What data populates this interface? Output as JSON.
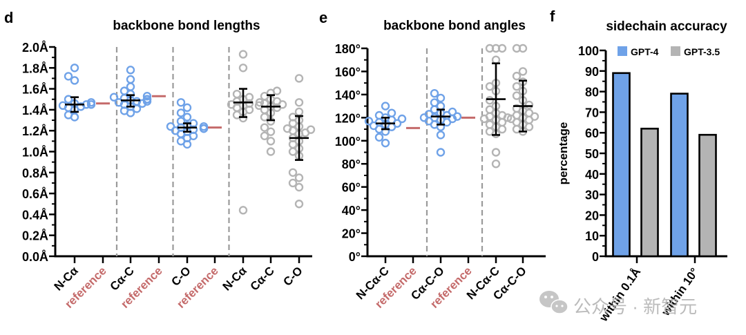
{
  "colors": {
    "gpt4": "#6fa2e8",
    "gpt35": "#b4b4b4",
    "reference": "#c46a6a",
    "axis": "#000000",
    "divider": "#9a9a9a",
    "watermark": "#b0b0b0"
  },
  "watermark": {
    "text": "公众号 · 新智元",
    "icon": "wechat-icon"
  },
  "chart_data": [
    {
      "panel": "d",
      "type": "scatter",
      "title": "backbone bond lengths",
      "ylabel": "",
      "ylim": [
        0.0,
        2.0
      ],
      "yticks": [
        "0.0Å",
        "0.2Å",
        "0.4Å",
        "0.6Å",
        "0.8Å",
        "1.0Å",
        "1.2Å",
        "1.4Å",
        "1.6Å",
        "1.8Å",
        "2.0Å"
      ],
      "ytick_values": [
        0.0,
        0.2,
        0.4,
        0.6,
        0.8,
        1.0,
        1.2,
        1.4,
        1.6,
        1.8,
        2.0
      ],
      "categories": [
        "N-Cα",
        "reference",
        "Cα-C",
        "reference",
        "C-O",
        "reference",
        "N-Cα",
        "Cα-C",
        "C-O"
      ],
      "category_roles": [
        "gpt4",
        "reference",
        "gpt4",
        "reference",
        "gpt4",
        "reference",
        "gpt35",
        "gpt35",
        "gpt35"
      ],
      "dividers_after": [
        1,
        3,
        5
      ],
      "groups": [
        {
          "label": "N-Cα",
          "model": "GPT-4",
          "mean": 1.45,
          "err_low": 1.38,
          "err_high": 1.52,
          "points": [
            1.8,
            1.72,
            1.68,
            1.5,
            1.47,
            1.45,
            1.44,
            1.43,
            1.42,
            1.4,
            1.35,
            1.33,
            1.45,
            1.46
          ]
        },
        {
          "label": "reference",
          "value": 1.46
        },
        {
          "label": "Cα-C",
          "model": "GPT-4",
          "mean": 1.49,
          "err_low": 1.43,
          "err_high": 1.54,
          "points": [
            1.78,
            1.69,
            1.62,
            1.58,
            1.55,
            1.53,
            1.52,
            1.51,
            1.5,
            1.49,
            1.48,
            1.47,
            1.46,
            1.45,
            1.43,
            1.41,
            1.39,
            1.37,
            1.5,
            1.48
          ]
        },
        {
          "label": "reference",
          "value": 1.53
        },
        {
          "label": "C-O",
          "model": "GPT-4",
          "mean": 1.23,
          "err_low": 1.19,
          "err_high": 1.27,
          "points": [
            1.47,
            1.42,
            1.37,
            1.33,
            1.29,
            1.27,
            1.25,
            1.24,
            1.23,
            1.22,
            1.21,
            1.2,
            1.19,
            1.17,
            1.15,
            1.13,
            1.1,
            1.07,
            1.24,
            1.22
          ]
        },
        {
          "label": "reference",
          "value": 1.23
        },
        {
          "label": "N-Cα",
          "model": "GPT-3.5",
          "mean": 1.47,
          "err_low": 1.33,
          "err_high": 1.6,
          "points": [
            1.93,
            1.8,
            1.55,
            1.52,
            1.5,
            1.48,
            1.46,
            1.44,
            1.42,
            1.4,
            1.38,
            1.35,
            1.32,
            0.44,
            1.47,
            1.45
          ]
        },
        {
          "label": "Cα-C",
          "model": "GPT-3.5",
          "mean": 1.43,
          "err_low": 1.3,
          "err_high": 1.54,
          "points": [
            1.58,
            1.56,
            1.53,
            1.5,
            1.48,
            1.46,
            1.44,
            1.42,
            1.4,
            1.37,
            1.33,
            1.29,
            1.23,
            1.19,
            1.15,
            1.1,
            1.0,
            1.43,
            1.45
          ]
        },
        {
          "label": "C-O",
          "model": "GPT-3.5",
          "mean": 1.13,
          "err_low": 0.92,
          "err_high": 1.34,
          "points": [
            1.7,
            1.47,
            1.38,
            1.33,
            1.3,
            1.27,
            1.24,
            1.22,
            1.2,
            1.17,
            1.13,
            1.1,
            1.07,
            1.03,
            1.0,
            0.96,
            0.8,
            0.75,
            0.7,
            0.66,
            0.5,
            1.21,
            1.18
          ]
        }
      ]
    },
    {
      "panel": "e",
      "type": "scatter",
      "title": "backbone bond angles",
      "ylabel": "",
      "ylim": [
        0,
        180
      ],
      "yticks": [
        "0°",
        "20°",
        "40°",
        "60°",
        "80°",
        "100°",
        "120°",
        "140°",
        "160°",
        "180°"
      ],
      "ytick_values": [
        0,
        20,
        40,
        60,
        80,
        100,
        120,
        140,
        160,
        180
      ],
      "categories": [
        "N-Cα-C",
        "reference",
        "Cα-C-O",
        "reference",
        "N-Cα-C",
        "Cα-C-O"
      ],
      "category_roles": [
        "gpt4",
        "reference",
        "gpt4",
        "reference",
        "gpt35",
        "gpt35"
      ],
      "dividers_after": [
        1,
        3
      ],
      "groups": [
        {
          "label": "N-Cα-C",
          "model": "GPT-4",
          "mean": 115,
          "err_low": 110,
          "err_high": 120,
          "points": [
            130,
            124,
            122,
            120,
            118,
            116,
            115,
            114,
            113,
            112,
            110,
            108,
            103,
            98,
            117,
            119
          ]
        },
        {
          "label": "reference",
          "value": 111
        },
        {
          "label": "Cα-C-O",
          "model": "GPT-4",
          "mean": 121,
          "err_low": 114,
          "err_high": 127,
          "points": [
            141,
            137,
            133,
            130,
            127,
            125,
            123,
            122,
            121,
            120,
            119,
            118,
            117,
            116,
            114,
            112,
            105,
            90,
            124,
            120
          ]
        },
        {
          "label": "reference",
          "value": 120
        },
        {
          "label": "N-Cα-C",
          "model": "GPT-3.5",
          "mean": 136,
          "err_low": 105,
          "err_high": 167,
          "points": [
            180,
            180,
            180,
            170,
            150,
            147,
            143,
            135,
            130,
            127,
            124,
            122,
            120,
            118,
            116,
            114,
            112,
            110,
            108,
            106,
            90,
            80,
            119,
            121
          ]
        },
        {
          "label": "Cα-C-O",
          "model": "GPT-3.5",
          "mean": 130,
          "err_low": 108,
          "err_high": 152,
          "points": [
            180,
            180,
            160,
            156,
            151,
            147,
            143,
            139,
            135,
            131,
            128,
            126,
            124,
            122,
            120,
            118,
            116,
            114,
            112,
            110,
            108,
            121,
            119
          ]
        }
      ]
    },
    {
      "panel": "f",
      "type": "bar",
      "title": "sidechain accuracy",
      "ylabel": "percentage",
      "xlabel": "",
      "ylim": [
        0,
        100
      ],
      "yticks": [
        "0",
        "10",
        "20",
        "30",
        "40",
        "50",
        "60",
        "70",
        "80",
        "90",
        "100"
      ],
      "ytick_values": [
        0,
        10,
        20,
        30,
        40,
        50,
        60,
        70,
        80,
        90,
        100
      ],
      "categories": [
        "within 0.1Å",
        "within 10°"
      ],
      "legend": {
        "position": "top",
        "entries": [
          "GPT-4",
          "GPT-3.5"
        ]
      },
      "series": [
        {
          "name": "GPT-4",
          "values": [
            89,
            79
          ]
        },
        {
          "name": "GPT-3.5",
          "values": [
            62,
            59
          ]
        }
      ]
    }
  ]
}
